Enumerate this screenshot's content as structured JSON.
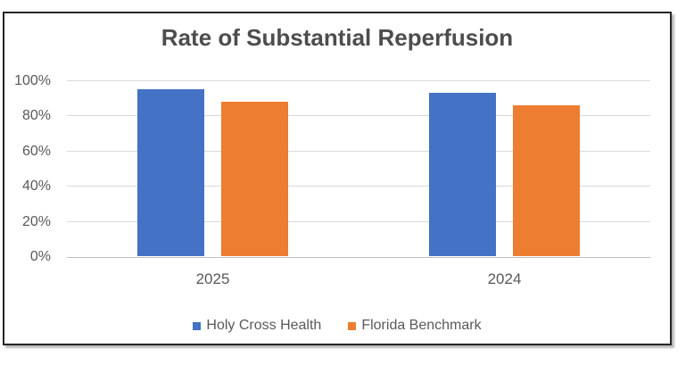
{
  "chart_data": {
    "type": "bar",
    "title": "Rate of Substantial Reperfusion",
    "categories": [
      "2025",
      "2024"
    ],
    "series": [
      {
        "name": "Holy Cross Health",
        "color": "#4472C4",
        "values": [
          95,
          93
        ]
      },
      {
        "name": "Florida Benchmark",
        "color": "#ED7D31",
        "values": [
          88,
          86
        ]
      }
    ],
    "xlabel": "",
    "ylabel": "",
    "ylim": [
      0,
      100
    ],
    "ytick_labels": [
      "0%",
      "20%",
      "40%",
      "60%",
      "80%",
      "100%"
    ],
    "grid": true,
    "legend_position": "bottom"
  },
  "colors": {
    "title_text": "#4d4d4d",
    "axis_text": "#595959",
    "gridline": "#d9d9d9",
    "axis_line": "#bfbfbf",
    "frame_border": "#262626",
    "background": "#ffffff"
  }
}
